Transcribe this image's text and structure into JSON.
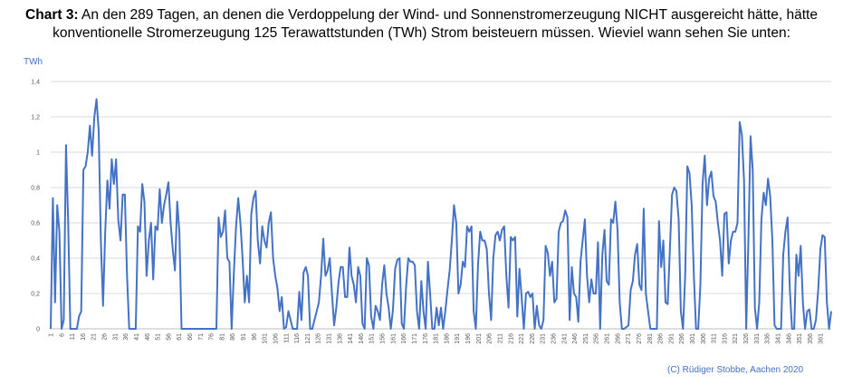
{
  "title": {
    "bold": "Chart 3:",
    "text": " An den 289 Tagen, an denen die Verdoppelung der Wind- und Sonnenstromerzeugung NICHT ausgereicht hätte, hätte konventionelle Stromerzeugung 125 Terawattstunden (TWh) Strom beisteuern müssen. Wieviel wann sehen Sie unten:"
  },
  "unit_label": "TWh",
  "credit": "(C) Rüdiger Stobbe, Aachen 2020",
  "chart_data": {
    "type": "line",
    "title": "Chart 3: An den 289 Tagen, an denen die Verdoppelung der Wind- und Sonnenstromerzeugung NICHT ausgereicht hätte, hätte konventionelle Stromerzeugung 125 Terawattstunden (TWh) Strom beisteuern müssen. Wieviel wann sehen Sie unten:",
    "ylabel": "TWh",
    "xlabel": "",
    "ylim": [
      0,
      1.4
    ],
    "yticks": [
      "0",
      "0,2",
      "0,4",
      "0,6",
      "0,8",
      "1",
      "1,2",
      "1,4"
    ],
    "xlim": [
      1,
      366
    ],
    "xticks": [
      "1",
      "6",
      "11",
      "16",
      "21",
      "26",
      "31",
      "36",
      "41",
      "46",
      "51",
      "56",
      "61",
      "66",
      "71",
      "76",
      "81",
      "86",
      "91",
      "96",
      "101",
      "106",
      "111",
      "116",
      "121",
      "126",
      "131",
      "136",
      "141",
      "146",
      "151",
      "156",
      "161",
      "166",
      "171",
      "176",
      "181",
      "186",
      "191",
      "196",
      "201",
      "206",
      "211",
      "216",
      "221",
      "226",
      "231",
      "236",
      "241",
      "246",
      "251",
      "256",
      "261",
      "266",
      "271",
      "276",
      "281",
      "286",
      "291",
      "296",
      "301",
      "306",
      "311",
      "316",
      "321",
      "326",
      "331",
      "336",
      "341",
      "346",
      "351",
      "356",
      "361"
    ],
    "grid": "horizontal",
    "color": "#4472C4",
    "series_x": [
      1,
      366
    ],
    "values": [
      0,
      0.74,
      0.15,
      0.7,
      0.55,
      0,
      0.05,
      1.04,
      0.6,
      0,
      0,
      0,
      0,
      0.07,
      0.1,
      0.9,
      0.92,
      1.0,
      1.15,
      0.98,
      1.2,
      1.3,
      1.12,
      0.5,
      0.13,
      0.55,
      0.84,
      0.68,
      0.96,
      0.82,
      0.96,
      0.62,
      0.5,
      0.76,
      0.76,
      0.3,
      0,
      0,
      0,
      0,
      0.58,
      0.55,
      0.82,
      0.72,
      0.3,
      0.5,
      0.6,
      0.28,
      0.58,
      0.56,
      0.79,
      0.6,
      0.7,
      0.76,
      0.83,
      0.6,
      0.45,
      0.33,
      0.72,
      0.55,
      0,
      0,
      0,
      0,
      0,
      0,
      0,
      0,
      0,
      0,
      0,
      0,
      0,
      0,
      0,
      0,
      0,
      0.63,
      0.52,
      0.55,
      0.67,
      0.4,
      0.38,
      0,
      0.32,
      0.58,
      0.74,
      0.6,
      0.4,
      0.15,
      0.3,
      0.15,
      0.65,
      0.74,
      0.78,
      0.5,
      0.37,
      0.58,
      0.5,
      0.46,
      0.6,
      0.66,
      0.4,
      0.3,
      0.23,
      0.1,
      0.18,
      0,
      0.01,
      0.1,
      0.05,
      0,
      0,
      0,
      0.21,
      0.05,
      0.32,
      0.35,
      0.3,
      0,
      0,
      0.05,
      0.1,
      0.15,
      0.3,
      0.51,
      0.3,
      0.33,
      0.4,
      0.2,
      0.02,
      0.12,
      0.26,
      0.35,
      0.35,
      0.18,
      0.18,
      0.46,
      0.3,
      0.25,
      0.15,
      0.35,
      0.3,
      0.03,
      0,
      0.4,
      0.36,
      0.07,
      0,
      0.13,
      0.1,
      0.05,
      0.25,
      0.36,
      0.2,
      0.12,
      0,
      0.11,
      0.34,
      0.39,
      0.4,
      0.03,
      0,
      0.24,
      0.4,
      0.38,
      0.38,
      0.36,
      0.1,
      0,
      0.27,
      0.1,
      0,
      0.38,
      0.2,
      0,
      0,
      0.12,
      0.02,
      0.12,
      0,
      0.1,
      0.22,
      0.33,
      0.5,
      0.7,
      0.6,
      0.2,
      0.25,
      0.38,
      0.35,
      0.58,
      0.55,
      0.58,
      0.1,
      0,
      0.36,
      0.55,
      0.5,
      0.5,
      0.45,
      0.2,
      0.05,
      0.4,
      0.53,
      0.55,
      0.5,
      0.56,
      0.58,
      0.3,
      0.12,
      0.52,
      0.5,
      0.52,
      0.07,
      0.34,
      0.18,
      0,
      0.2,
      0.21,
      0.18,
      0.2,
      0,
      0.13,
      0.02,
      0,
      0.05,
      0.47,
      0.43,
      0.3,
      0.38,
      0.15,
      0.17,
      0.55,
      0.6,
      0.61,
      0.67,
      0.63,
      0.05,
      0.35,
      0.2,
      0.18,
      0.04,
      0.38,
      0.5,
      0.62,
      0.3,
      0.15,
      0.28,
      0.2,
      0.2,
      0.49,
      0,
      0.42,
      0.56,
      0.27,
      0.25,
      0.62,
      0.6,
      0.72,
      0.56,
      0.15,
      0,
      0,
      0.01,
      0.02,
      0.22,
      0.27,
      0.42,
      0.48,
      0.25,
      0.22,
      0.68,
      0.2,
      0.1,
      0,
      0,
      0,
      0,
      0.61,
      0.35,
      0.5,
      0.15,
      0.14,
      0.45,
      0.76,
      0.8,
      0.78,
      0.62,
      0.1,
      0,
      0.3,
      0.92,
      0.88,
      0.7,
      0.3,
      0,
      0,
      0.25,
      0.82,
      0.98,
      0.7,
      0.85,
      0.89,
      0.75,
      0.72,
      0.6,
      0.5,
      0.3,
      0.65,
      0.66,
      0.37,
      0.5,
      0.55,
      0.55,
      0.6,
      1.17,
      1.1,
      0.84,
      0,
      0.5,
      1.09,
      0.9,
      0.12,
      0,
      0.15,
      0.62,
      0.77,
      0.7,
      0.85,
      0.75,
      0.5,
      0.02,
      0,
      0,
      0,
      0.42,
      0.55,
      0.63,
      0.22,
      0,
      0,
      0.42,
      0.3,
      0.47,
      0.15,
      0,
      0.1,
      0.11,
      0,
      0,
      0.05,
      0.22,
      0.45,
      0.53,
      0.52,
      0.15,
      0,
      0.1
    ]
  }
}
